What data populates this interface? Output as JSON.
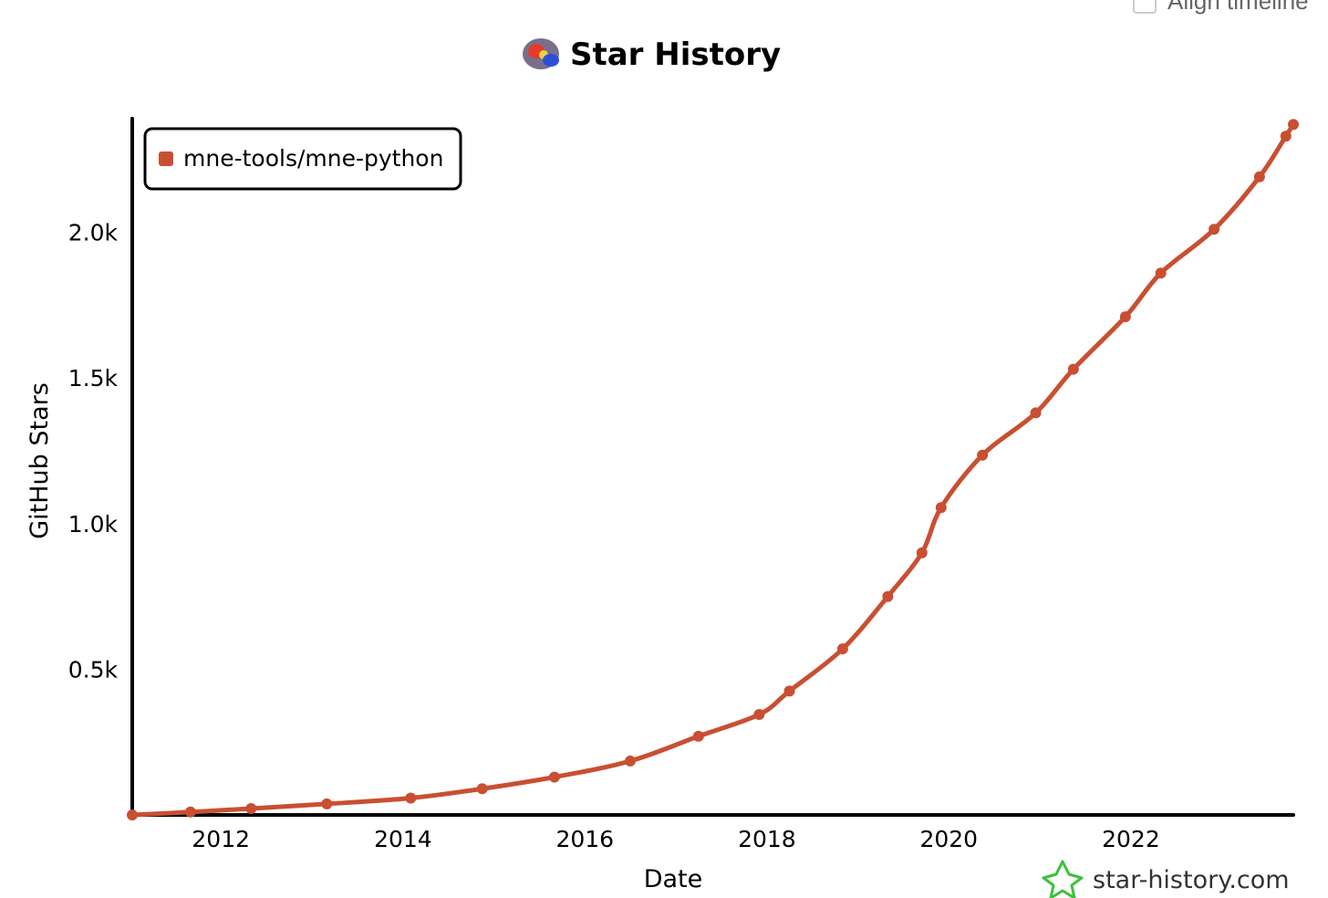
{
  "header": {
    "align_timeline_label": "Align timeline"
  },
  "chart_data": {
    "type": "line",
    "title": "Star History",
    "xlabel": "Date",
    "ylabel": "GitHub Stars",
    "x_ticks": [
      "2012",
      "2014",
      "2016",
      "2018",
      "2020",
      "2022"
    ],
    "y_ticks": [
      "0.5k",
      "1.0k",
      "1.5k",
      "2.0k"
    ],
    "xlim": [
      "2011-01-10",
      "2023-10-15"
    ],
    "ylim": [
      0,
      2390
    ],
    "legend_position": "top-left",
    "series": [
      {
        "name": "mne-tools/mne-python",
        "color": "#c94f32",
        "points": [
          [
            "2011-01-10",
            0
          ],
          [
            "2011-09-01",
            10
          ],
          [
            "2012-05-01",
            22
          ],
          [
            "2013-03-01",
            38
          ],
          [
            "2014-02-01",
            58
          ],
          [
            "2014-11-15",
            90
          ],
          [
            "2015-09-01",
            130
          ],
          [
            "2016-07-01",
            185
          ],
          [
            "2017-04-01",
            270
          ],
          [
            "2017-12-01",
            345
          ],
          [
            "2018-04-01",
            425
          ],
          [
            "2018-11-01",
            570
          ],
          [
            "2019-05-01",
            750
          ],
          [
            "2019-09-15",
            900
          ],
          [
            "2019-12-01",
            1055
          ],
          [
            "2020-05-15",
            1235
          ],
          [
            "2020-12-15",
            1380
          ],
          [
            "2021-05-15",
            1530
          ],
          [
            "2021-12-10",
            1710
          ],
          [
            "2022-05-01",
            1860
          ],
          [
            "2022-12-01",
            2010
          ],
          [
            "2023-06-01",
            2190
          ],
          [
            "2023-09-15",
            2330
          ],
          [
            "2023-10-15",
            2370
          ]
        ]
      }
    ]
  },
  "watermark": {
    "text": "star-history.com",
    "icon": "star-outline-icon",
    "icon_color": "#3cc13c"
  }
}
